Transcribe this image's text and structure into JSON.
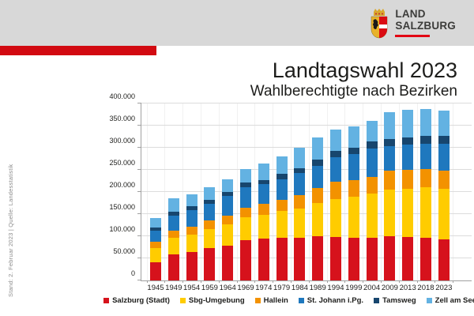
{
  "header": {
    "logo_line1": "LAND",
    "logo_line2": "SALZBURG"
  },
  "title": "Landtagswahl 2023",
  "subtitle": "Wahlberechtigte nach Bezirken",
  "source_note": "Stand: 2. Februar 2023 | Quelle: Landesstatistik",
  "colors": {
    "header_gray": "#D8D8D8",
    "accent_red_bar": "#D20A11",
    "logo_underline_red": "#E30613",
    "axis_gray": "#A0A0A0",
    "gridline_gray": "#DCDCDC"
  },
  "chart_data": {
    "type": "bar",
    "stacked": true,
    "title": "Wahlberechtigte nach Bezirken",
    "xlabel": "",
    "ylabel": "",
    "ylim": [
      0,
      400000
    ],
    "y_tick_step": 50000,
    "y_tick_labels": [
      "0",
      "50.000",
      "100.000",
      "150.000",
      "200.000",
      "250.000",
      "300.000",
      "350.000",
      "400.000"
    ],
    "grid": true,
    "legend_position": "bottom",
    "categories": [
      "1945",
      "1949",
      "1954",
      "1959",
      "1964",
      "1969",
      "1974",
      "1979",
      "1984",
      "1989",
      "1994",
      "1999",
      "2004",
      "2009",
      "2013",
      "2018",
      "2023"
    ],
    "series": [
      {
        "name": "Salzburg (Stadt)",
        "color": "#D6121C",
        "values": [
          41500,
          59500,
          64000,
          72500,
          78500,
          91000,
          94000,
          96500,
          97000,
          100500,
          98000,
          96000,
          97000,
          99500,
          98000,
          96500,
          93500
        ]
      },
      {
        "name": "Sbg-Umgebung",
        "color": "#FFCC00",
        "values": [
          32500,
          37500,
          40500,
          43500,
          47500,
          52500,
          55000,
          60000,
          65000,
          75000,
          86500,
          93500,
          99500,
          106000,
          110000,
          114500,
          114500
        ]
      },
      {
        "name": "Hallein",
        "color": "#F39200",
        "values": [
          14000,
          16000,
          17000,
          19000,
          21000,
          21500,
          24000,
          25000,
          30500,
          33000,
          38500,
          38000,
          37000,
          42500,
          42000,
          40000,
          40000
        ]
      },
      {
        "name": "St. Johann i.Pg.",
        "color": "#1F78BE",
        "values": [
          24000,
          33000,
          38000,
          39000,
          43500,
          45000,
          44500,
          48000,
          50000,
          50500,
          56500,
          58000,
          64500,
          55000,
          56500,
          58000,
          61500
        ]
      },
      {
        "name": "Tamsweg",
        "color": "#17466E",
        "values": [
          8000,
          9000,
          9000,
          9000,
          9000,
          11000,
          9000,
          11000,
          12000,
          15000,
          14000,
          15000,
          16000,
          17000,
          17500,
          17500,
          16500
        ]
      },
      {
        "name": "Zell am See",
        "color": "#63B2E2",
        "values": [
          22000,
          30000,
          26500,
          28000,
          28500,
          30000,
          37500,
          39500,
          45500,
          49000,
          48500,
          48500,
          47000,
          61000,
          61000,
          60500,
          57500
        ]
      }
    ]
  }
}
